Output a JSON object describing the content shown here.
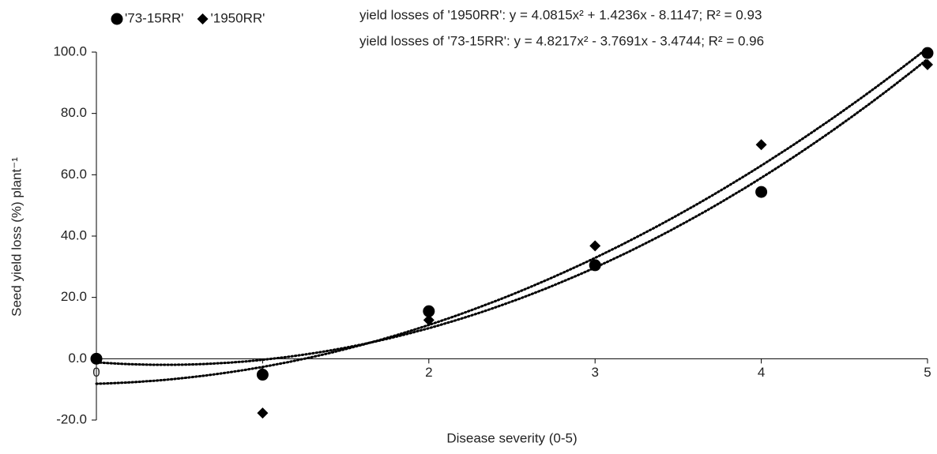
{
  "chart_data": {
    "type": "scatter",
    "x_label": "Disease severity (0-5)",
    "y_label": "Seed yield loss (%) plant⁻¹",
    "annotations": [
      "yield losses of '1950RR': y = 4.0815x² + 1.4236x - 8.1147; R² = 0.93",
      "yield losses of '73-15RR': y = 4.8217x² - 3.7691x - 3.4744; R² = 0.96"
    ],
    "x": [
      0,
      1,
      2,
      3,
      4,
      5
    ],
    "series": [
      {
        "name": "'73-15RR'",
        "color": "#000000",
        "marker": "circle",
        "values": [
          0,
          -5.2,
          15.5,
          30.5,
          54.4,
          99.7
        ],
        "trendline": "poly2"
      },
      {
        "name": "'1950RR'",
        "color": "#000000",
        "marker": "diamond",
        "values": [
          0,
          -17.7,
          12.6,
          36.8,
          69.8,
          95.9
        ],
        "trendline": "poly2"
      }
    ],
    "xlim": [
      0,
      5
    ],
    "xticks": [
      0,
      1,
      2,
      3,
      4,
      5
    ],
    "ylim": [
      -20,
      100
    ],
    "yticks": [
      {
        "value": -20,
        "label": "-20.0"
      },
      {
        "value": 0,
        "label": "0.0"
      },
      {
        "value": 20,
        "label": "20.0"
      },
      {
        "value": 40,
        "label": "40.0"
      },
      {
        "value": 60,
        "label": "60.0"
      },
      {
        "value": 80,
        "label": "80.0"
      },
      {
        "value": 100,
        "label": "100.0"
      }
    ],
    "legend": "top-left",
    "grid": false
  }
}
